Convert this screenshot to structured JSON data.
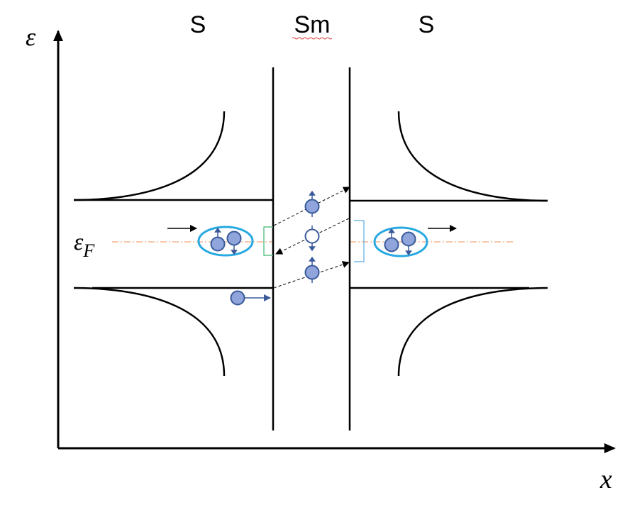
{
  "regions": {
    "left": "S",
    "middle": "Sm",
    "right": "S"
  },
  "axes": {
    "y_symbol": "ε",
    "x_symbol": "x",
    "fermi_symbol": "ε",
    "fermi_subscript": "F"
  },
  "colors": {
    "line": "#000000",
    "electron_fill": "#8fa5dc",
    "electron_stroke": "#3a5a9a",
    "hole_fill": "#ffffff",
    "spin_arrow": "#3a5a9a",
    "cooper_pair": "#27a9e1",
    "fermi_line": "#f2a77a",
    "bracket_left": "#3cb371",
    "bracket_right": "#5aaee0"
  }
}
